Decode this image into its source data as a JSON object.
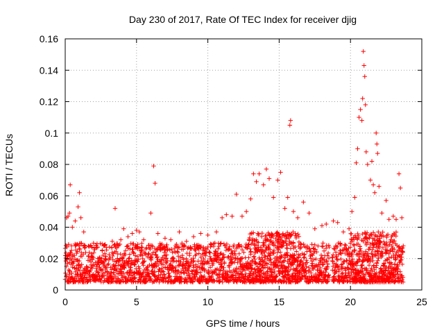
{
  "chart_data": {
    "type": "scatter",
    "title": "Day 230 of 2017, Rate Of TEC Index for receiver djig",
    "xlabel": "GPS time / hours",
    "ylabel": "ROTI / TECUs",
    "xlim": [
      0,
      25
    ],
    "ylim": [
      0,
      0.16
    ],
    "xticks": [
      0,
      5,
      10,
      15,
      20,
      25
    ],
    "xtick_labels": [
      "0",
      "5",
      "10",
      "15",
      "20",
      "25"
    ],
    "yticks": [
      0,
      0.02,
      0.04,
      0.06,
      0.08,
      0.1,
      0.12,
      0.14,
      0.16
    ],
    "ytick_labels": [
      "0",
      "0.02",
      "0.04",
      "0.06",
      "0.08",
      "0.1",
      "0.12",
      "0.14",
      "0.16"
    ],
    "grid": true,
    "marker": "+",
    "series_color": "#ff0000",
    "series": [
      {
        "name": "ROTI",
        "dense_band": {
          "x_start": 0.0,
          "x_end": 23.7,
          "gap": [
            18.5,
            18.7
          ],
          "typical_range": [
            0.005,
            0.03
          ]
        },
        "points": [
          [
            0.1,
            0.046
          ],
          [
            0.2,
            0.047
          ],
          [
            0.3,
            0.049
          ],
          [
            0.35,
            0.067
          ],
          [
            0.5,
            0.04
          ],
          [
            0.7,
            0.044
          ],
          [
            0.9,
            0.053
          ],
          [
            1.0,
            0.062
          ],
          [
            1.1,
            0.046
          ],
          [
            1.3,
            0.037
          ],
          [
            1.8,
            0.028
          ],
          [
            2.2,
            0.027
          ],
          [
            2.8,
            0.029
          ],
          [
            3.3,
            0.031
          ],
          [
            3.5,
            0.052
          ],
          [
            3.9,
            0.032
          ],
          [
            4.1,
            0.039
          ],
          [
            4.4,
            0.034
          ],
          [
            4.7,
            0.036
          ],
          [
            5.0,
            0.038
          ],
          [
            5.2,
            0.037
          ],
          [
            5.5,
            0.032
          ],
          [
            6.0,
            0.049
          ],
          [
            6.2,
            0.079
          ],
          [
            6.3,
            0.068
          ],
          [
            6.5,
            0.036
          ],
          [
            7.0,
            0.033
          ],
          [
            7.4,
            0.032
          ],
          [
            8.0,
            0.037
          ],
          [
            8.5,
            0.031
          ],
          [
            9.0,
            0.034
          ],
          [
            9.5,
            0.036
          ],
          [
            10.0,
            0.035
          ],
          [
            10.6,
            0.037
          ],
          [
            11.0,
            0.046
          ],
          [
            11.3,
            0.048
          ],
          [
            11.7,
            0.047
          ],
          [
            12.0,
            0.061
          ],
          [
            12.4,
            0.047
          ],
          [
            12.7,
            0.05
          ],
          [
            13.0,
            0.058
          ],
          [
            13.2,
            0.074
          ],
          [
            13.4,
            0.069
          ],
          [
            13.6,
            0.074
          ],
          [
            13.9,
            0.067
          ],
          [
            14.1,
            0.077
          ],
          [
            14.3,
            0.071
          ],
          [
            14.6,
            0.059
          ],
          [
            14.9,
            0.07
          ],
          [
            15.1,
            0.075
          ],
          [
            15.4,
            0.052
          ],
          [
            15.6,
            0.059
          ],
          [
            15.75,
            0.105
          ],
          [
            15.8,
            0.108
          ],
          [
            16.0,
            0.05
          ],
          [
            16.3,
            0.046
          ],
          [
            16.7,
            0.056
          ],
          [
            17.1,
            0.049
          ],
          [
            17.5,
            0.039
          ],
          [
            18.0,
            0.041
          ],
          [
            18.3,
            0.042
          ],
          [
            18.8,
            0.044
          ],
          [
            19.1,
            0.043
          ],
          [
            19.5,
            0.037
          ],
          [
            19.9,
            0.039
          ],
          [
            20.1,
            0.05
          ],
          [
            20.3,
            0.059
          ],
          [
            20.4,
            0.081
          ],
          [
            20.5,
            0.09
          ],
          [
            20.6,
            0.11
          ],
          [
            20.7,
            0.115
          ],
          [
            20.8,
            0.108
          ],
          [
            20.85,
            0.122
          ],
          [
            20.9,
            0.152
          ],
          [
            20.95,
            0.143
          ],
          [
            21.0,
            0.136
          ],
          [
            21.05,
            0.118
          ],
          [
            21.1,
            0.088
          ],
          [
            21.2,
            0.08
          ],
          [
            21.4,
            0.07
          ],
          [
            21.5,
            0.082
          ],
          [
            21.6,
            0.067
          ],
          [
            21.7,
            0.062
          ],
          [
            21.8,
            0.1
          ],
          [
            21.85,
            0.093
          ],
          [
            21.9,
            0.087
          ],
          [
            22.0,
            0.066
          ],
          [
            22.2,
            0.049
          ],
          [
            22.5,
            0.057
          ],
          [
            22.7,
            0.045
          ],
          [
            23.0,
            0.047
          ],
          [
            23.2,
            0.045
          ],
          [
            23.4,
            0.074
          ],
          [
            23.5,
            0.065
          ],
          [
            23.6,
            0.046
          ]
        ]
      }
    ]
  }
}
